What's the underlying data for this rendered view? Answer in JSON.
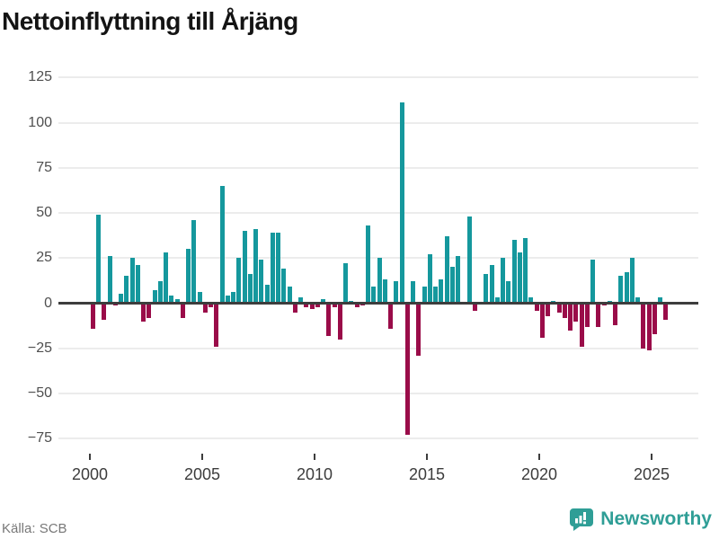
{
  "title": "Nettoinflyttning till Årjäng",
  "source": "Källa: SCB",
  "brand": {
    "name": "Newsworthy",
    "color": "#2f9e96"
  },
  "chart_data": {
    "type": "bar",
    "title": "Nettoinflyttning till Årjäng",
    "frequency": "quarterly",
    "start_period": "2000Q1",
    "end_period": "2025Q3",
    "ylim": [
      -75,
      125
    ],
    "grid": "horizontal",
    "positive_color": "#15989d",
    "negative_color": "#9a0c49",
    "y_ticks": [
      {
        "label": "125",
        "value": 125
      },
      {
        "label": "100",
        "value": 100
      },
      {
        "label": "75",
        "value": 75
      },
      {
        "label": "50",
        "value": 50
      },
      {
        "label": "25",
        "value": 25
      },
      {
        "label": "0",
        "value": 0
      },
      {
        "label": "−25",
        "value": -25
      },
      {
        "label": "−50",
        "value": -50
      },
      {
        "label": "−75",
        "value": -75
      }
    ],
    "x_ticks": [
      {
        "label": "2000",
        "year": 2000
      },
      {
        "label": "2005",
        "year": 2005
      },
      {
        "label": "2010",
        "year": 2010
      },
      {
        "label": "2015",
        "year": 2015
      },
      {
        "label": "2020",
        "year": 2020
      },
      {
        "label": "2025",
        "year": 2025
      }
    ],
    "values": [
      -14,
      49,
      -9,
      26,
      -1,
      5,
      15,
      25,
      21,
      -10,
      -8,
      7,
      12,
      28,
      4,
      2,
      -8,
      30,
      46,
      6,
      -5,
      -2,
      -24,
      65,
      4,
      6,
      25,
      40,
      16,
      41,
      24,
      10,
      39,
      39,
      19,
      9,
      -5,
      3,
      -2,
      -3,
      -2,
      2,
      -18,
      -2,
      -20,
      22,
      1,
      -2,
      -1,
      43,
      9,
      25,
      13,
      -14,
      12,
      111,
      -73,
      12,
      -29,
      9,
      27,
      9,
      13,
      37,
      20,
      26,
      0,
      48,
      -4,
      0,
      16,
      21,
      3,
      25,
      12,
      35,
      28,
      36,
      3,
      -4,
      -19,
      -7,
      1,
      -5,
      -8,
      -15,
      -10,
      -24,
      -13,
      24,
      -13,
      -1,
      1,
      -12,
      15,
      17,
      25,
      3,
      -25,
      -26,
      -17,
      3,
      -9
    ]
  }
}
